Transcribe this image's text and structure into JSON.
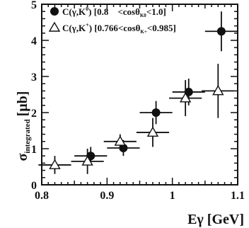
{
  "chart_data": {
    "type": "scatter",
    "xlabel": "Eγ [GeV]",
    "ylabel": "σ",
    "ylabel_subscript": "integrated",
    "ylabel_unit": "[μb]",
    "xlim": [
      0.8,
      1.1
    ],
    "ylim": [
      0,
      5
    ],
    "xticks": [
      {
        "v": 0.8,
        "label": "0.8"
      },
      {
        "v": 0.9,
        "label": "0.9"
      },
      {
        "v": 1.0,
        "label": "1"
      },
      {
        "v": 1.1,
        "label": "1.1"
      }
    ],
    "yticks": [
      {
        "v": 0,
        "label": "0"
      },
      {
        "v": 1,
        "label": "1"
      },
      {
        "v": 2,
        "label": "2"
      },
      {
        "v": 3,
        "label": "3"
      },
      {
        "v": 4,
        "label": "4"
      },
      {
        "v": 5,
        "label": "5"
      }
    ],
    "grid": false,
    "series": [
      {
        "name": "C(γ,K⁰) [0.8 <cosθK0<1.0]",
        "marker": "filled-circle",
        "points": [
          {
            "x": 0.875,
            "y": 0.8,
            "xerr": 0.025,
            "yerr": 0.25
          },
          {
            "x": 0.925,
            "y": 1.02,
            "xerr": 0.025,
            "yerr": 0.22
          },
          {
            "x": 0.975,
            "y": 2.0,
            "xerr": 0.025,
            "yerr": 0.32
          },
          {
            "x": 1.025,
            "y": 2.57,
            "xerr": 0.025,
            "yerr": 0.37
          },
          {
            "x": 1.075,
            "y": 4.25,
            "xerr": 0.025,
            "yerr": 0.55
          }
        ]
      },
      {
        "name": "C(γ,K⁺) [0.766<cosθK+<0.985]",
        "marker": "open-triangle",
        "points": [
          {
            "x": 0.82,
            "y": 0.55,
            "xerr": 0.025,
            "yerr": 0.25
          },
          {
            "x": 0.87,
            "y": 0.65,
            "xerr": 0.025,
            "yerr": 0.35
          },
          {
            "x": 0.92,
            "y": 1.2,
            "xerr": 0.025,
            "yerr": 0.2
          },
          {
            "x": 0.97,
            "y": 1.45,
            "xerr": 0.025,
            "yerr": 0.4
          },
          {
            "x": 1.02,
            "y": 2.4,
            "xerr": 0.025,
            "yerr": 0.5
          },
          {
            "x": 1.07,
            "y": 2.6,
            "xerr": 0.025,
            "yerr": 0.75
          }
        ]
      }
    ],
    "legend": {
      "placement": "top-left",
      "entries": [
        {
          "main": "C(γ,K",
          "sup": "0",
          "rest": ") [0.8    <cosθ",
          "sub": "K0",
          "end": "<1.0]"
        },
        {
          "main": "C(γ,K",
          "sup": "+",
          "rest": ") [0.766<cosθ",
          "sub": "K+",
          "end": "<0.985]"
        }
      ]
    }
  }
}
